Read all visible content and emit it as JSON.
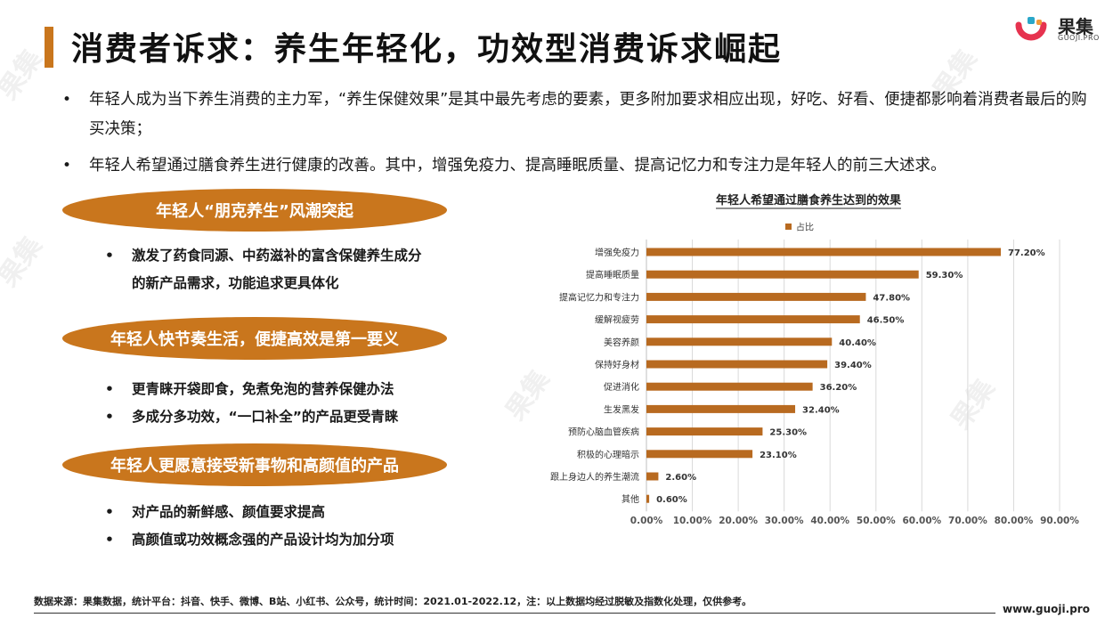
{
  "title": "消费者诉求：养生年轻化，功效型消费诉求崛起",
  "logo": {
    "name": "果集",
    "sub": "GUOJI.PRO",
    "colors": [
      "#e6334f",
      "#f29a3a",
      "#2aa7c9"
    ]
  },
  "bullets": [
    "年轻人成为当下养生消费的主力军，“养生保健效果”是其中最先考虑的要素，更多附加要求相应出现，好吃、好看、便捷都影响着消费者最后的购买决策；",
    "年轻人希望通过膳食养生进行健康的改善。其中，增强免疫力、提高睡眠质量、提高记忆力和专注力是年轻人的前三大述求。"
  ],
  "sections": [
    {
      "heading": "年轻人“朋克养生”风潮突起",
      "items": [
        "激发了药食同源、中药滋补的富含保健养生成分",
        "的新产品需求，功能追求更具体化"
      ]
    },
    {
      "heading": "年轻人快节奏生活，便捷高效是第一要义",
      "items": [
        "更青睐开袋即食，免煮免泡的营养保健办法",
        "多成分多功效，“一口补全”的产品更受青睐"
      ]
    },
    {
      "heading": "年轻人更愿意接受新事物和高颜值的产品",
      "items": [
        "对产品的新鲜感、颜值要求提高",
        "高颜值或功效概念强的产品设计均为加分项"
      ]
    }
  ],
  "chart_data": {
    "type": "bar",
    "orientation": "horizontal",
    "title": "年轻人希望通过膳食养生达到的效果",
    "legend": "占比",
    "legend_position": "top",
    "color": "#b86a20",
    "categories": [
      "增强免疫力",
      "提高睡眠质量",
      "提高记忆力和专注力",
      "缓解视疲劳",
      "美容养颜",
      "保持好身材",
      "促进消化",
      "生发黑发",
      "预防心脑血管疾病",
      "积极的心理暗示",
      "跟上身边人的养生潮流",
      "其他"
    ],
    "values": [
      77.2,
      59.3,
      47.8,
      46.5,
      40.4,
      39.4,
      36.2,
      32.4,
      25.3,
      23.1,
      2.6,
      0.6
    ],
    "value_labels": [
      "77.20%",
      "59.30%",
      "47.80%",
      "46.50%",
      "40.40%",
      "39.40%",
      "36.20%",
      "32.40%",
      "25.30%",
      "23.10%",
      "2.60%",
      "0.60%"
    ],
    "xlim": [
      0,
      90
    ],
    "xticks": [
      "0.00%",
      "10.00%",
      "20.00%",
      "30.00%",
      "40.00%",
      "50.00%",
      "60.00%",
      "70.00%",
      "80.00%",
      "90.00%"
    ],
    "grid": true
  },
  "footer": {
    "source": "数据来源：果集数据，统计平台：抖音、快手、微博、B站、小红书、公众号，统计时间：2021.01-2022.12，注：以上数据均经过脱敏及指数化处理，仅供参考。",
    "url": "www.guoji.pro"
  }
}
